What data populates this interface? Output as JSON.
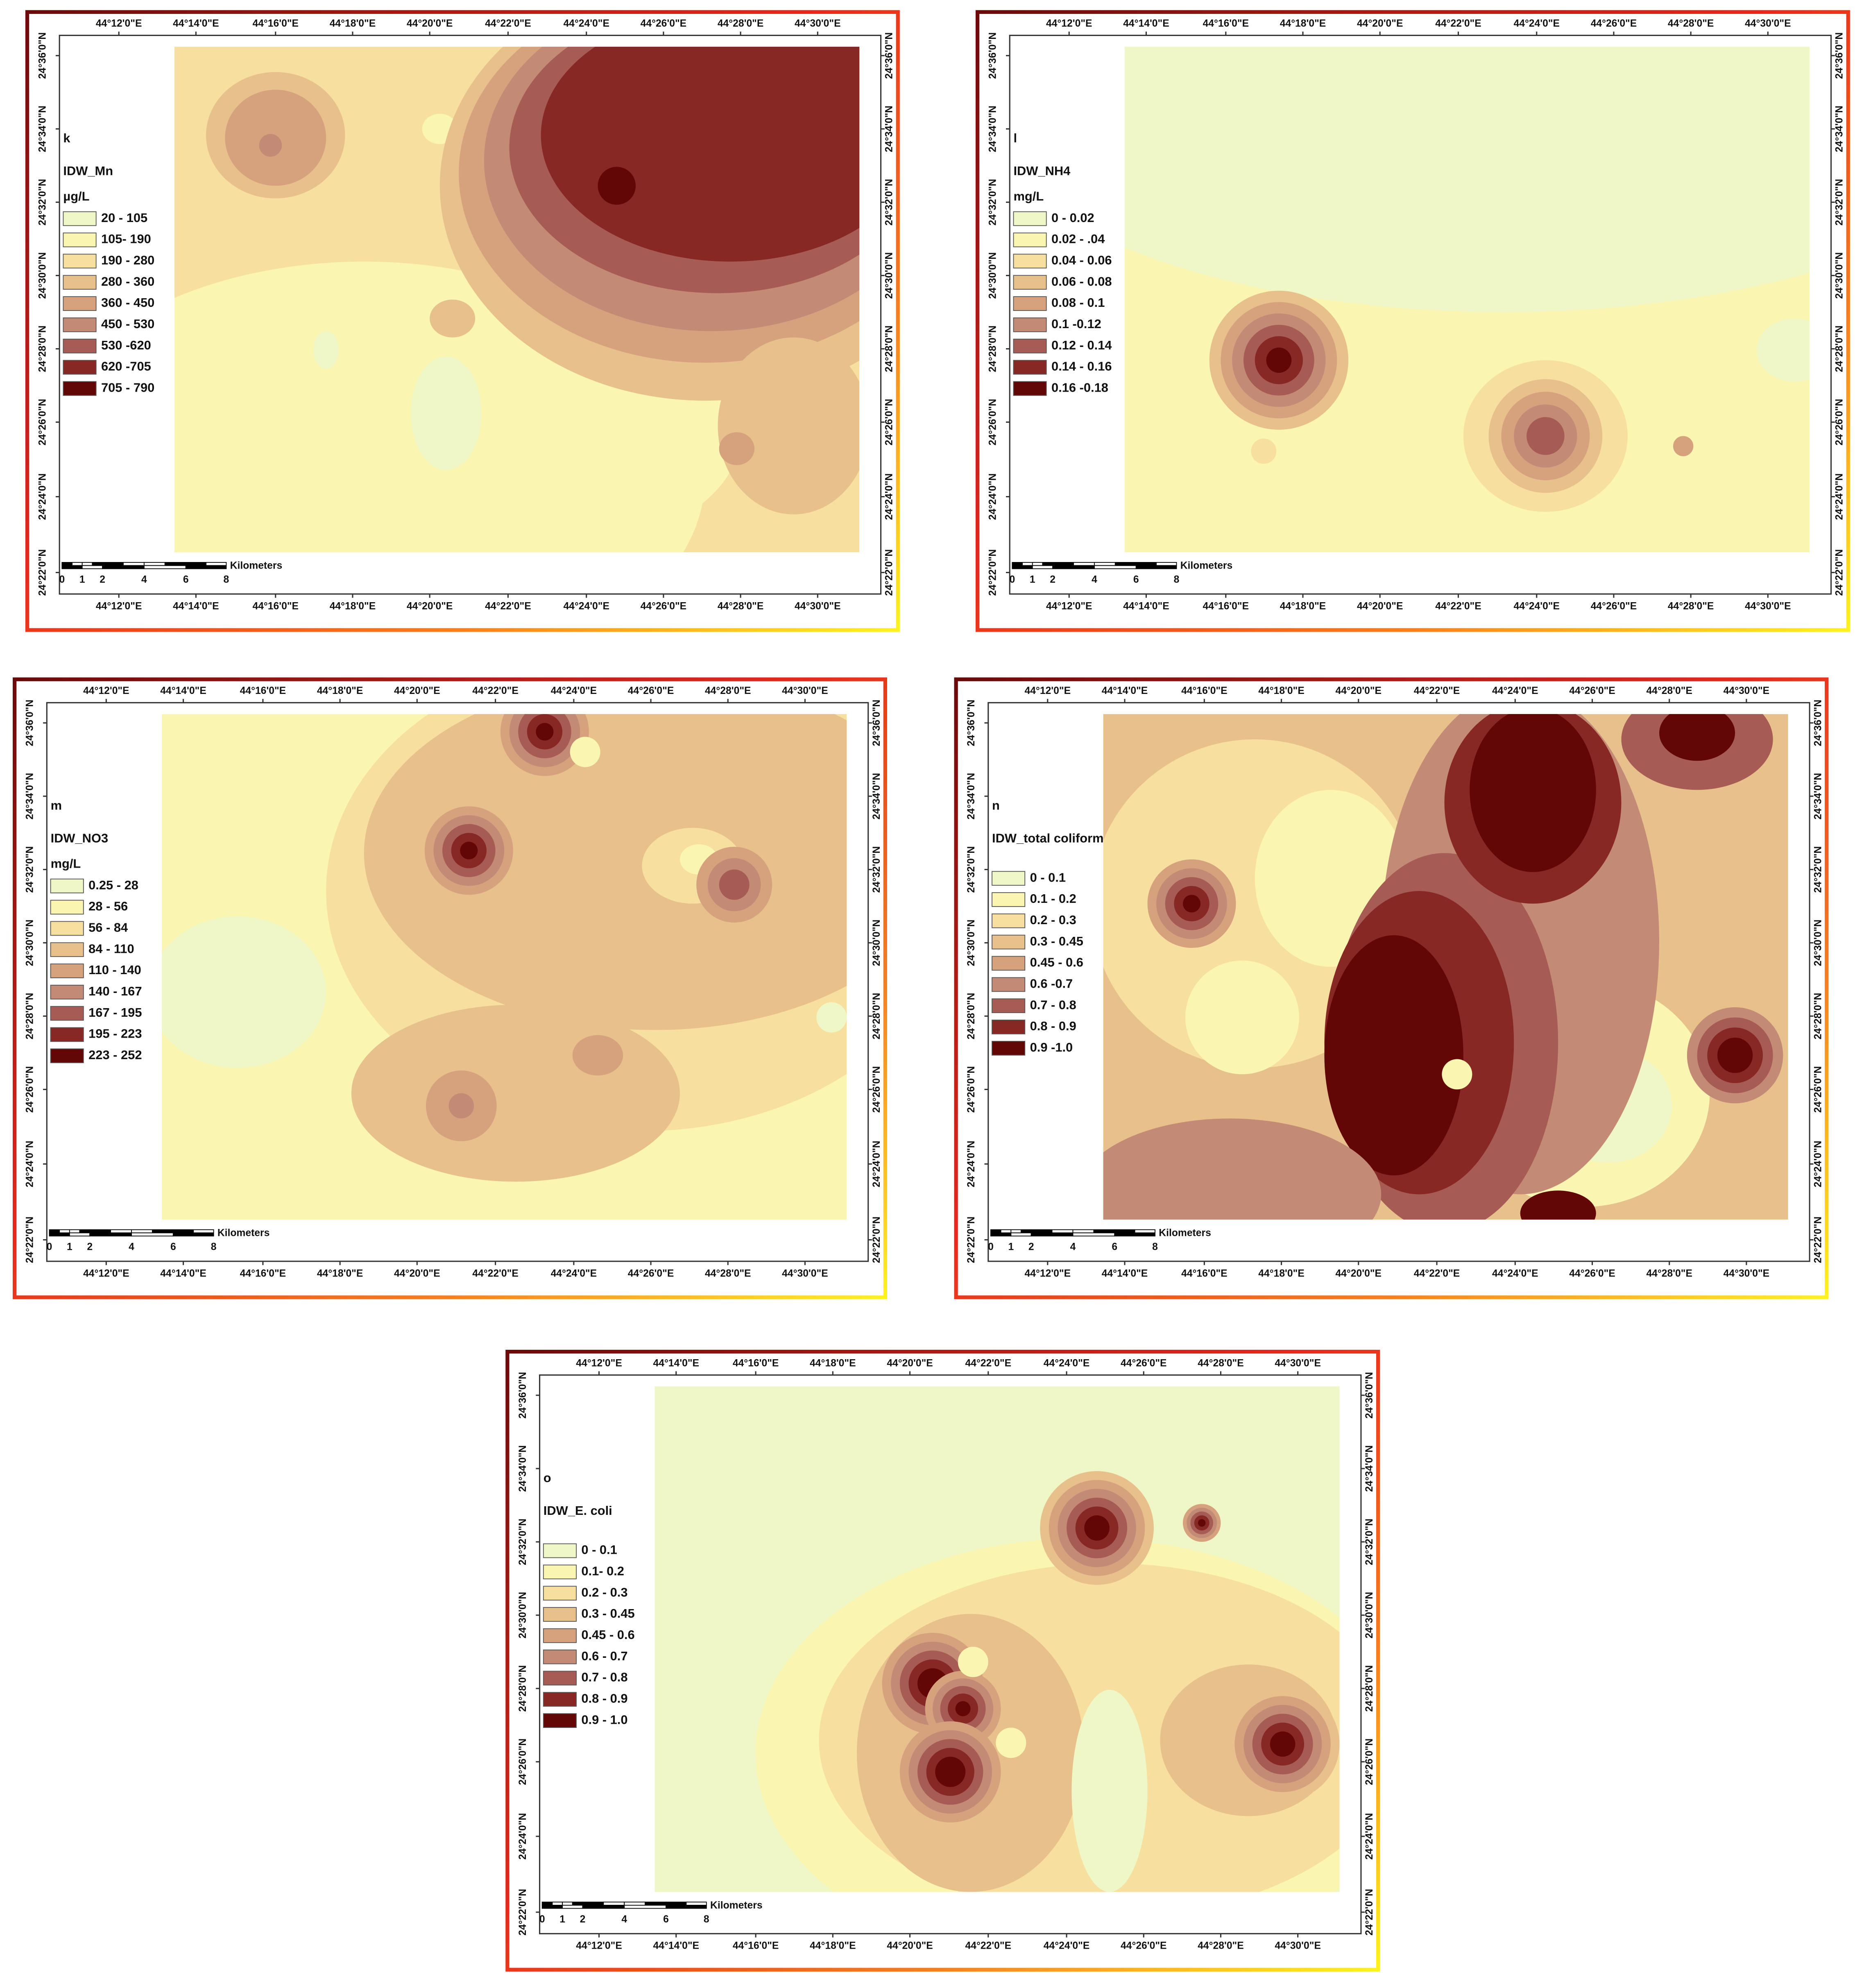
{
  "palette": [
    "#eff7c6",
    "#faf6b2",
    "#f6df9f",
    "#e7c08b",
    "#d6a27e",
    "#c38a76",
    "#a65c54",
    "#872824",
    "#620606"
  ],
  "panels": [
    {
      "letter": "k",
      "layer": "IDW_Mn",
      "unit": "µg/L",
      "classes": [
        "20 - 105",
        "105- 190",
        "190 - 280",
        "280 - 360",
        "360 - 450",
        "450 - 530",
        "530 -620",
        "620 -705",
        "705 - 790"
      ],
      "top_ticks": [
        "44°12'0\"E",
        "44°14'0\"E",
        "44°16'0\"E",
        "44°18'0\"E",
        "44°20'0\"E",
        "44°22'0\"E",
        "44°24'0\"E",
        "44°26'0\"E",
        "44°28'0\"E",
        "44°30'0\"E"
      ],
      "bottom_ticks": [
        "44°12'0\"E",
        "44°14'0\"E",
        "44°16'0\"E",
        "44°18'0\"E",
        "44°20'0\"E",
        "44°22'0\"E",
        "44°24'0\"E",
        "44°26'0\"E",
        "44°28'0\"E",
        "44°30'0\"E"
      ],
      "left_ticks": [
        "24°36'0\"N",
        "24°34'0\"N",
        "24°32'0\"N",
        "24°30'0\"N",
        "24°28'0\"N",
        "24°26'0\"N",
        "24°24'0\"N",
        "24°22'0\"N"
      ],
      "right_ticks": [
        "24°36'0\"N",
        "24°34'0\"N",
        "24°32'0\"N",
        "24°30'0\"N",
        "24°28'0\"N",
        "24°26'0\"N",
        "24°24'0\"N",
        "24°22'0\"N"
      ],
      "scale_labels": [
        "0",
        "1",
        "2",
        "4",
        "6",
        "8"
      ],
      "scale_unit": "Kilometers"
    },
    {
      "letter": "l",
      "layer": "IDW_NH4",
      "unit": "mg/L",
      "classes": [
        "0 - 0.02",
        "0.02 - .04",
        "0.04 - 0.06",
        "0.06 - 0.08",
        "0.08 - 0.1",
        "0.1 -0.12",
        "0.12 - 0.14",
        "0.14 - 0.16",
        "0.16 -0.18"
      ],
      "top_ticks": [
        "44°12'0\"E",
        "44°14'0\"E",
        "44°16'0\"E",
        "44°18'0\"E",
        "44°20'0\"E",
        "44°22'0\"E",
        "44°24'0\"E",
        "44°26'0\"E",
        "44°28'0\"E",
        "44°30'0\"E"
      ],
      "bottom_ticks": [
        "44°12'0\"E",
        "44°14'0\"E",
        "44°16'0\"E",
        "44°18'0\"E",
        "44°20'0\"E",
        "44°22'0\"E",
        "44°24'0\"E",
        "44°26'0\"E",
        "44°28'0\"E",
        "44°30'0\"E"
      ],
      "left_ticks": [
        "24°36'0\"N",
        "24°34'0\"N",
        "24°32'0\"N",
        "24°30'0\"N",
        "24°28'0\"N",
        "24°26'0\"N",
        "24°24'0\"N",
        "24°22'0\"N"
      ],
      "right_ticks": [
        "24°36'0\"N",
        "24°34'0\"N",
        "24°32'0\"N",
        "24°30'0\"N",
        "24°28'0\"N",
        "24°26'0\"N",
        "24°24'0\"N",
        "24°22'0\"N"
      ],
      "scale_labels": [
        "0",
        "1",
        "2",
        "4",
        "6",
        "8"
      ],
      "scale_unit": "Kilometers"
    },
    {
      "letter": "m",
      "layer": "IDW_NO3",
      "unit": "mg/L",
      "classes": [
        "0.25 - 28",
        "28 - 56",
        "56 - 84",
        "84 - 110",
        "110 - 140",
        "140 - 167",
        "167 - 195",
        "195 - 223",
        "223 - 252"
      ],
      "top_ticks": [
        "44°12'0\"E",
        "44°14'0\"E",
        "44°16'0\"E",
        "44°18'0\"E",
        "44°20'0\"E",
        "44°22'0\"E",
        "44°24'0\"E",
        "44°26'0\"E",
        "44°28'0\"E",
        "44°30'0\"E"
      ],
      "bottom_ticks": [
        "44°12'0\"E",
        "44°14'0\"E",
        "44°16'0\"E",
        "44°18'0\"E",
        "44°20'0\"E",
        "44°22'0\"E",
        "44°24'0\"E",
        "44°26'0\"E",
        "44°28'0\"E",
        "44°30'0\"E"
      ],
      "left_ticks": [
        "24°36'0\"N",
        "24°34'0\"N",
        "24°32'0\"N",
        "24°30'0\"N",
        "24°28'0\"N",
        "24°26'0\"N",
        "24°24'0\"N",
        "24°22'0\"N"
      ],
      "right_ticks": [
        "24°36'0\"N",
        "24°34'0\"N",
        "24°32'0\"N",
        "24°30'0\"N",
        "24°28'0\"N",
        "24°26'0\"N",
        "24°24'0\"N",
        "24°22'0\"N"
      ],
      "scale_labels": [
        "0",
        "1",
        "2",
        "4",
        "6",
        "8"
      ],
      "scale_unit": "Kilometers"
    },
    {
      "letter": "n",
      "layer": "IDW_total coliform",
      "classes": [
        "0 - 0.1",
        "0.1 - 0.2",
        "0.2 - 0.3",
        "0.3 - 0.45",
        "0.45 - 0.6",
        "0.6 -0.7",
        "0.7 - 0.8",
        "0.8 - 0.9",
        "0.9 -1.0"
      ],
      "top_ticks": [
        "44°12'0\"E",
        "44°14'0\"E",
        "44°16'0\"E",
        "44°18'0\"E",
        "44°20'0\"E",
        "44°22'0\"E",
        "44°24'0\"E",
        "44°26'0\"E",
        "44°28'0\"E",
        "44°30'0\"E"
      ],
      "bottom_ticks": [
        "44°12'0\"E",
        "44°14'0\"E",
        "44°16'0\"E",
        "44°18'0\"E",
        "44°20'0\"E",
        "44°22'0\"E",
        "44°24'0\"E",
        "44°26'0\"E",
        "44°28'0\"E",
        "44°30'0\"E"
      ],
      "left_ticks": [
        "24°36'0\"N",
        "24°34'0\"N",
        "24°32'0\"N",
        "24°30'0\"N",
        "24°28'0\"N",
        "24°26'0\"N",
        "24°24'0\"N",
        "24°22'0\"N"
      ],
      "right_ticks": [
        "24°36'0\"N",
        "24°34'0\"N",
        "24°32'0\"N",
        "24°30'0\"N",
        "24°28'0\"N",
        "24°26'0\"N",
        "24°24'0\"N",
        "24°22'0\"N"
      ],
      "scale_labels": [
        "0",
        "1",
        "2",
        "4",
        "6",
        "8"
      ],
      "scale_unit": "Kilometers"
    },
    {
      "letter": "o",
      "layer": "IDW_E. coli",
      "classes": [
        "0 - 0.1",
        "0.1- 0.2",
        "0.2 - 0.3",
        "0.3 - 0.45",
        "0.45 - 0.6",
        "0.6 - 0.7",
        "0.7 - 0.8",
        "0.8 - 0.9",
        "0.9 - 1.0"
      ],
      "top_ticks": [
        "44°12'0\"E",
        "44°14'0\"E",
        "44°16'0\"E",
        "44°18'0\"E",
        "44°20'0\"E",
        "44°22'0\"E",
        "44°24'0\"E",
        "44°26'0\"E",
        "44°28'0\"E",
        "44°30'0\"E"
      ],
      "bottom_ticks": [
        "44°12'0\"E",
        "44°14'0\"E",
        "44°16'0\"E",
        "44°18'0\"E",
        "44°20'0\"E",
        "44°22'0\"E",
        "44°24'0\"E",
        "44°26'0\"E",
        "44°28'0\"E",
        "44°30'0\"E"
      ],
      "left_ticks": [
        "24°36'0\"N",
        "24°34'0\"N",
        "24°32'0\"N",
        "24°30'0\"N",
        "24°28'0\"N",
        "24°26'0\"N",
        "24°24'0\"N",
        "24°22'0\"N"
      ],
      "right_ticks": [
        "24°36'0\"N",
        "24°34'0\"N",
        "24°32'0\"N",
        "24°30'0\"N",
        "24°28'0\"N",
        "24°26'0\"N",
        "24°24'0\"N",
        "24°22'0\"N"
      ],
      "scale_labels": [
        "0",
        "1",
        "2",
        "4",
        "6",
        "8"
      ],
      "scale_unit": "Kilometers"
    }
  ]
}
